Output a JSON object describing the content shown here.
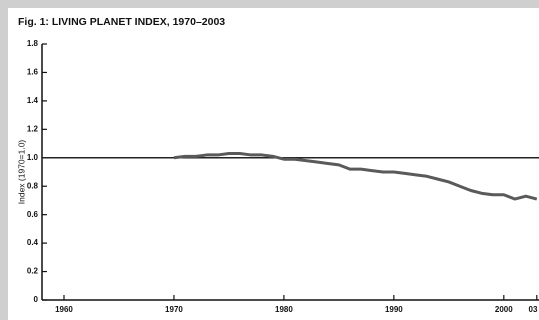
{
  "chart_data": {
    "type": "line",
    "title": "Fig. 1: LIVING PLANET INDEX, 1970–2003",
    "ylabel": "Index (1970=1.0)",
    "x": [
      1970,
      1971,
      1972,
      1973,
      1974,
      1975,
      1976,
      1977,
      1978,
      1979,
      1980,
      1981,
      1982,
      1983,
      1984,
      1985,
      1986,
      1987,
      1988,
      1989,
      1990,
      1991,
      1992,
      1993,
      1994,
      1995,
      1996,
      1997,
      1998,
      1999,
      2000,
      2001,
      2002,
      2003
    ],
    "series": [
      {
        "color": "#5a5a5a",
        "values": [
          1.0,
          1.01,
          1.01,
          1.02,
          1.02,
          1.03,
          1.03,
          1.02,
          1.02,
          1.01,
          0.99,
          0.99,
          0.98,
          0.97,
          0.96,
          0.95,
          0.92,
          0.92,
          0.91,
          0.9,
          0.9,
          0.89,
          0.88,
          0.87,
          0.85,
          0.83,
          0.8,
          0.77,
          0.75,
          0.74,
          0.74,
          0.71,
          0.73,
          0.71
        ]
      }
    ],
    "reference_line": {
      "value": 1,
      "color": "#222222"
    },
    "xlim": [
      1958,
      2003.2
    ],
    "xticks": [
      1960,
      1970,
      1980,
      1990,
      2000,
      {
        "value": 2003,
        "label": "03"
      }
    ],
    "ylim": [
      0,
      1.8
    ],
    "yticks": [
      0,
      0.2,
      0.4,
      0.6,
      0.8,
      {
        "value": 1,
        "label": "1.0"
      },
      1.2,
      1.4,
      1.6,
      1.8
    ]
  }
}
